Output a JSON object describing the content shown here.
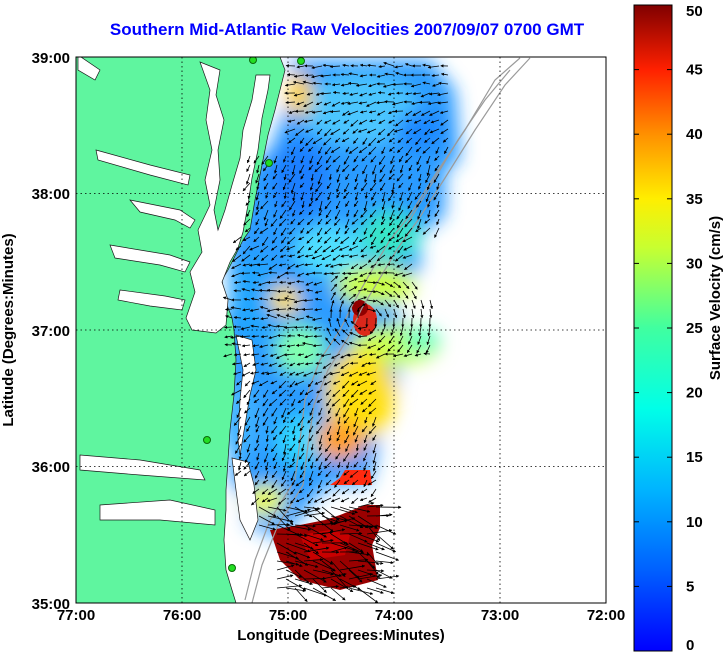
{
  "title": "Southern Mid-Atlantic Raw Velocities 2007/09/07 0700 GMT",
  "x_axis": {
    "label": "Longitude (Degrees:Minutes)",
    "ticks": [
      "77:00",
      "76:00",
      "75:00",
      "74:00",
      "73:00",
      "72:00"
    ],
    "range_deg": [
      -77,
      -72
    ]
  },
  "y_axis": {
    "label": "Latitude (Degrees:Minutes)",
    "ticks": [
      "39:00",
      "38:00",
      "37:00",
      "36:00",
      "35:00"
    ],
    "range_deg": [
      35,
      39
    ]
  },
  "colorbar": {
    "label": "Surface Velocity (cm/s)",
    "ticks": [
      "50",
      "45",
      "40",
      "35",
      "30",
      "25",
      "20",
      "15",
      "10",
      "5",
      "0"
    ],
    "range": [
      0,
      50
    ],
    "colormap": "jet"
  },
  "colors": {
    "title": "#0000ff",
    "land": "#5ff59f",
    "grid": "#000000",
    "bathymetry": "#9a9a9a",
    "vectors": "#000000",
    "stations": "#22dd22"
  },
  "stations_count": 5,
  "map": {
    "region": "Southern Mid-Atlantic",
    "date": "2007/09/07",
    "time": "0700 GMT",
    "field": "Raw Velocities"
  }
}
